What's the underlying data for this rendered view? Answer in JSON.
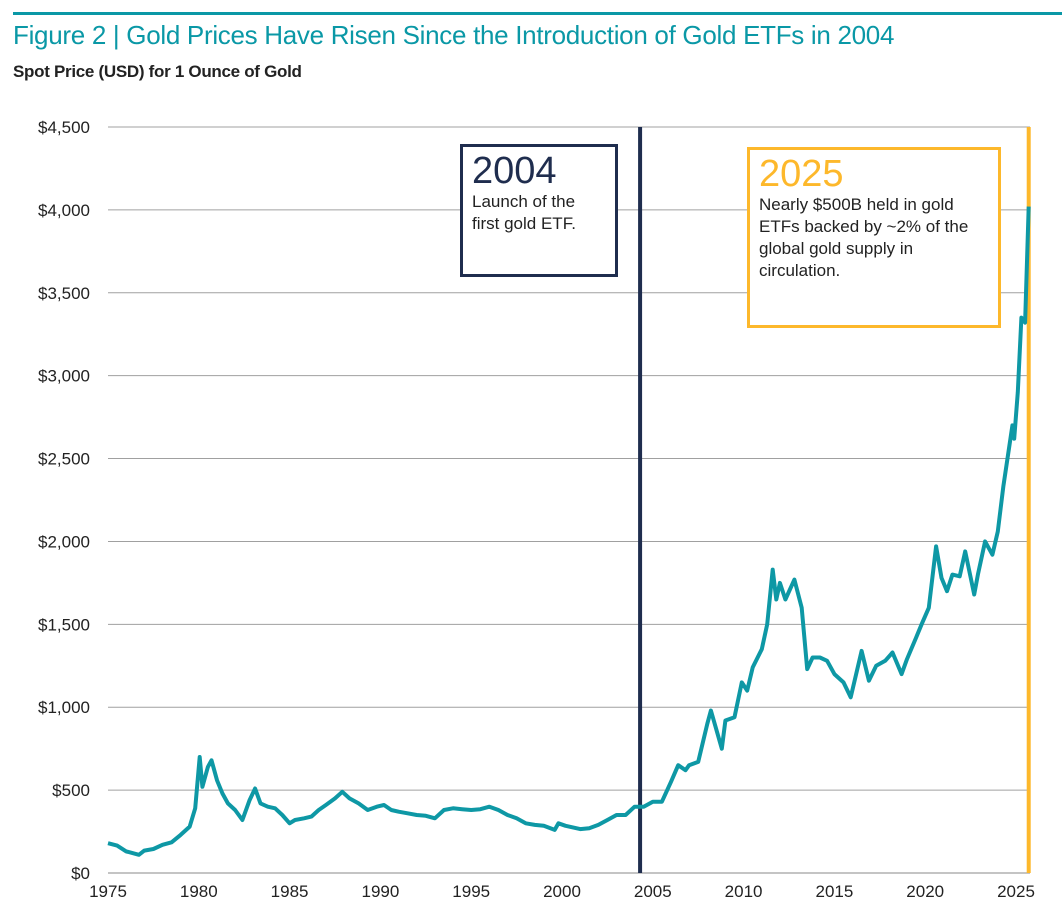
{
  "title": "Figure 2 | Gold Prices Have Risen Since the Introduction of Gold ETFs in 2004",
  "subtitle": "Spot Price (USD) for 1 Ounce of Gold",
  "colors": {
    "accent": "#0A98A6",
    "line": "#0E98A5",
    "etf_marker": "#1F2D4E",
    "current_marker": "#FDB82B",
    "grid": "#a0a0a0"
  },
  "annotations": [
    {
      "year_label": "2004",
      "text": "Launch of the first gold ETF.",
      "x": 2004.3,
      "color": "#1F2D4E"
    },
    {
      "year_label": "2025",
      "text": "Nearly $500B held in gold ETFs backed by ~2% of the global gold supply in circulation.",
      "x": 2025.7,
      "color": "#FDB82B"
    }
  ],
  "chart_data": {
    "type": "line",
    "title": "Gold Prices Have Risen Since the Introduction of Gold ETFs in 2004",
    "ylabel": "Spot Price (USD) for 1 Ounce of Gold",
    "xlim": [
      1975,
      2026
    ],
    "ylim": [
      0,
      4500
    ],
    "grid": "horizontal",
    "x_ticks": [
      "1975",
      "1980",
      "1985",
      "1990",
      "1995",
      "2000",
      "2005",
      "2010",
      "2015",
      "2020",
      "2025"
    ],
    "y_ticks": [
      "$0",
      "$500",
      "$1,000",
      "$1,500",
      "$2,000",
      "$2,500",
      "$3,000",
      "$3,500",
      "$4,000",
      "$4,500"
    ],
    "x": [
      1975,
      1975.5,
      1976,
      1976.7,
      1977,
      1977.5,
      1978,
      1978.5,
      1979,
      1979.5,
      1979.8,
      1980.05,
      1980.2,
      1980.5,
      1980.7,
      1981,
      1981.3,
      1981.6,
      1982,
      1982.4,
      1982.8,
      1983.1,
      1983.4,
      1983.8,
      1984.2,
      1984.6,
      1985,
      1985.3,
      1985.8,
      1986.2,
      1986.6,
      1987,
      1987.5,
      1987.9,
      1988.3,
      1988.8,
      1989.3,
      1989.8,
      1990.2,
      1990.6,
      1991,
      1991.5,
      1992,
      1992.5,
      1993,
      1993.5,
      1994,
      1994.5,
      1995,
      1995.5,
      1996,
      1996.5,
      1997,
      1997.5,
      1998,
      1998.5,
      1999,
      1999.6,
      1999.8,
      2000.2,
      2000.6,
      2001,
      2001.5,
      2002,
      2002.5,
      2003,
      2003.5,
      2004,
      2004.5,
      2005,
      2005.5,
      2006,
      2006.4,
      2006.8,
      2007,
      2007.5,
      2008,
      2008.2,
      2008.8,
      2009,
      2009.5,
      2009.9,
      2010.2,
      2010.5,
      2011,
      2011.3,
      2011.6,
      2011.8,
      2012,
      2012.3,
      2012.8,
      2013.2,
      2013.5,
      2013.8,
      2014.2,
      2014.6,
      2015,
      2015.5,
      2015.9,
      2016.5,
      2016.9,
      2017.3,
      2017.8,
      2018.2,
      2018.7,
      2019,
      2019.5,
      2019.8,
      2020.2,
      2020.6,
      2020.9,
      2021.2,
      2021.5,
      2021.9,
      2022.2,
      2022.7,
      2022.9,
      2023.3,
      2023.7,
      2024,
      2024.3,
      2024.8,
      2024.9,
      2025.1,
      2025.3,
      2025.5,
      2025.7
    ],
    "y": [
      180,
      165,
      130,
      110,
      135,
      145,
      170,
      185,
      230,
      280,
      390,
      700,
      520,
      640,
      680,
      560,
      480,
      420,
      380,
      320,
      440,
      510,
      420,
      400,
      390,
      350,
      300,
      320,
      330,
      340,
      380,
      410,
      450,
      490,
      450,
      420,
      380,
      400,
      410,
      380,
      370,
      360,
      350,
      345,
      330,
      380,
      390,
      385,
      380,
      385,
      400,
      380,
      350,
      330,
      300,
      290,
      285,
      260,
      300,
      285,
      275,
      265,
      270,
      290,
      320,
      350,
      350,
      400,
      400,
      430,
      430,
      550,
      650,
      620,
      650,
      670,
      900,
      980,
      750,
      920,
      940,
      1150,
      1100,
      1240,
      1350,
      1500,
      1830,
      1650,
      1750,
      1650,
      1770,
      1600,
      1230,
      1300,
      1300,
      1280,
      1200,
      1150,
      1060,
      1340,
      1160,
      1250,
      1280,
      1330,
      1200,
      1290,
      1420,
      1500,
      1600,
      1970,
      1780,
      1700,
      1800,
      1790,
      1940,
      1680,
      1800,
      2000,
      1920,
      2060,
      2330,
      2700,
      2620,
      2900,
      3350,
      3320,
      4020
    ]
  }
}
